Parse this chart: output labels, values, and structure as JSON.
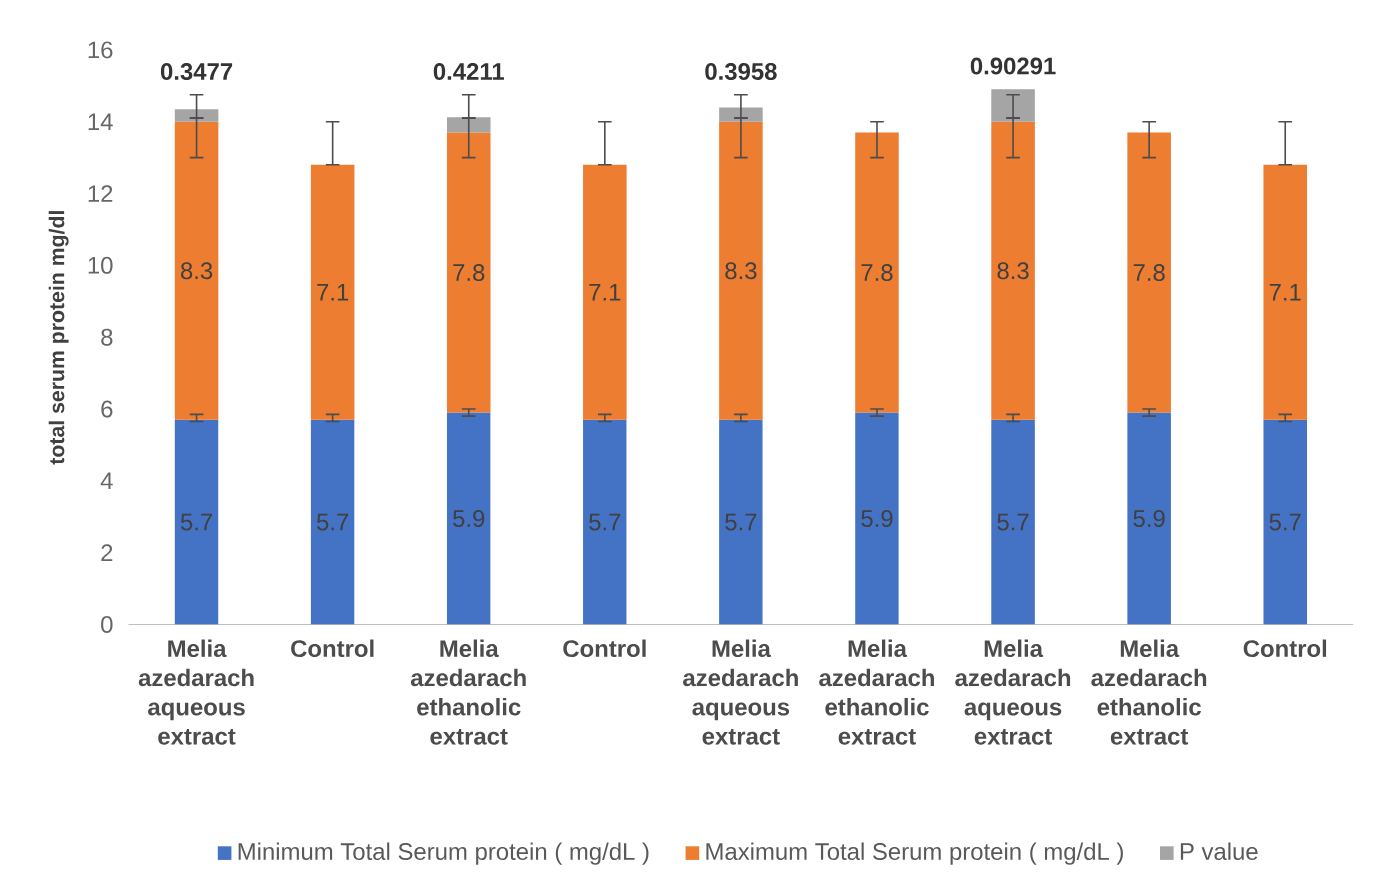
{
  "chart_data": {
    "type": "bar",
    "stacked": true,
    "ylabel": "total serum protein mg/dl",
    "categories": [
      "Melia azedarach aqueous extract",
      "Control",
      "Melia azedarach ethanolic extract",
      "Control",
      "Melia azedarach aqueous extract",
      "Melia azedarach ethanolic extract",
      "Melia azedarach aqueous extract",
      "Melia azedarach ethanolic extract",
      "Control"
    ],
    "series": [
      {
        "name": "Minimum Total Serum protein ( mg/dL )",
        "color": "#4472c4",
        "values": [
          5.7,
          5.7,
          5.9,
          5.7,
          5.7,
          5.9,
          5.7,
          5.9,
          5.7
        ],
        "errors": [
          [
            5.65,
            5.85
          ],
          [
            5.65,
            5.85
          ],
          [
            5.8,
            6.0
          ],
          [
            5.65,
            5.85
          ],
          [
            5.65,
            5.85
          ],
          [
            5.8,
            6.0
          ],
          [
            5.65,
            5.85
          ],
          [
            5.8,
            6.0
          ],
          [
            5.65,
            5.85
          ]
        ]
      },
      {
        "name": "Maximum Total Serum protein ( mg/dL )",
        "color": "#ed7d31",
        "values": [
          8.3,
          7.1,
          7.8,
          7.1,
          8.3,
          7.8,
          8.3,
          7.8,
          7.1
        ],
        "errors": [
          [
            13.0,
            14.1
          ],
          [
            12.8,
            14.0
          ],
          [
            13.0,
            14.1
          ],
          [
            12.8,
            14.0
          ],
          [
            13.0,
            14.1
          ],
          [
            13.0,
            14.0
          ],
          [
            13.0,
            14.1
          ],
          [
            13.0,
            14.0
          ],
          [
            12.8,
            14.0
          ]
        ]
      },
      {
        "name": "P value",
        "color": "#a5a5a5",
        "values": [
          0.3477,
          null,
          0.4211,
          null,
          0.3958,
          null,
          0.90291,
          null,
          null
        ],
        "errors": [
          [
            14.1,
            14.75
          ],
          null,
          [
            14.1,
            14.75
          ],
          null,
          [
            14.1,
            14.75
          ],
          null,
          [
            14.1,
            14.75
          ],
          null,
          null
        ]
      }
    ],
    "data_labels": true,
    "ylim": [
      0,
      16
    ],
    "yticks": [
      0,
      2,
      4,
      6,
      8,
      10,
      12,
      14,
      16
    ],
    "grid": false,
    "legend": "bottom"
  }
}
